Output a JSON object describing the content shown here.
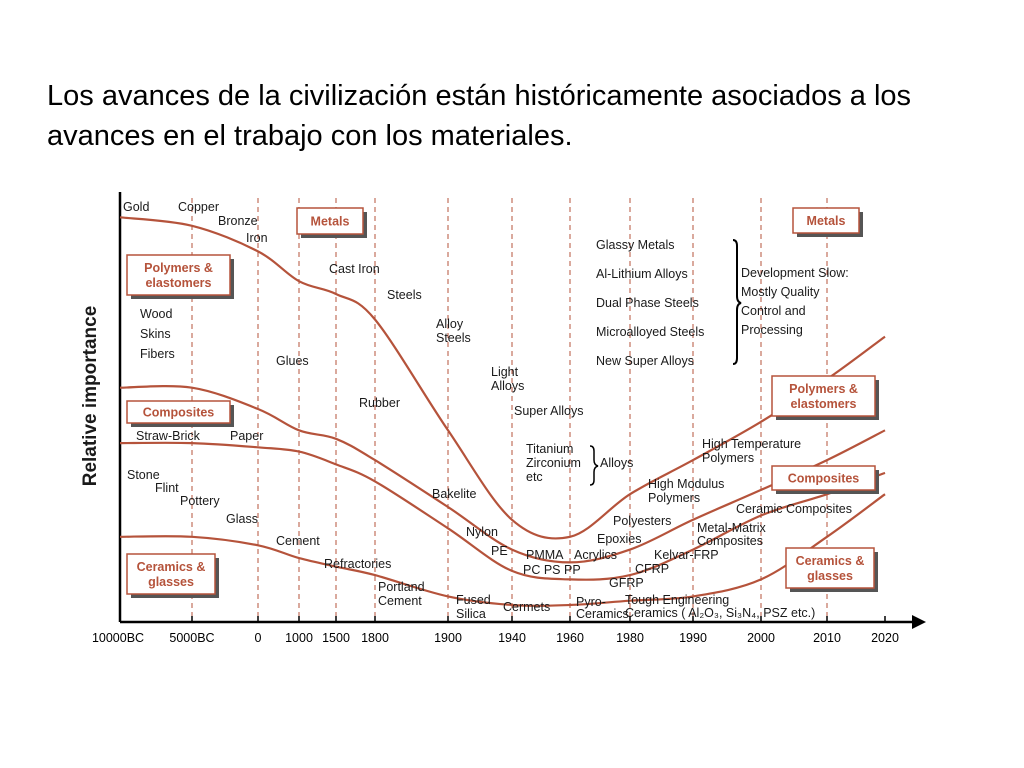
{
  "slide": {
    "title": "Los avances de la civilización están históricamente asociados a los avances en el trabajo con los materiales."
  },
  "colors": {
    "curve": "#b5533b",
    "box_stroke": "#b5533b",
    "box_text": "#b5533b",
    "gridline": "#b5533b",
    "axis": "#000000",
    "text": "#1a1a1a"
  },
  "chart_data": {
    "type": "line",
    "title": "",
    "ylabel": "Relative importance",
    "xlabel": "",
    "x_ticks": [
      "10000BC",
      "5000BC",
      "0",
      "1000",
      "1500",
      "1800",
      "1900",
      "1940",
      "1960",
      "1980",
      "1990",
      "2000",
      "2010",
      "2020"
    ],
    "gridlines_at": [
      "5000BC",
      "0",
      "1000",
      "1500",
      "1800",
      "1900",
      "1940",
      "1960",
      "1980",
      "1990",
      "2000",
      "2010"
    ],
    "ylim": [
      0,
      100
    ],
    "series": [
      {
        "name": "Metals",
        "points": [
          [
            "10000BC",
            95
          ],
          [
            "5000BC",
            93
          ],
          [
            "0",
            87
          ],
          [
            "1000",
            80
          ],
          [
            "1500",
            77
          ],
          [
            "1800",
            71
          ],
          [
            "1900",
            45
          ],
          [
            "1940",
            24
          ],
          [
            "1960",
            20
          ],
          [
            "1980",
            30
          ],
          [
            "1990",
            38
          ],
          [
            "2000",
            47
          ],
          [
            "2010",
            57
          ],
          [
            "2020",
            67
          ]
        ]
      },
      {
        "name": "Polymers & elastomers",
        "points": [
          [
            "10000BC",
            55
          ],
          [
            "5000BC",
            55
          ],
          [
            "0",
            50
          ],
          [
            "1000",
            45
          ],
          [
            "1500",
            43
          ],
          [
            "1800",
            38
          ],
          [
            "1900",
            27
          ],
          [
            "1940",
            17
          ],
          [
            "1960",
            14
          ],
          [
            "1980",
            17
          ],
          [
            "1990",
            24
          ],
          [
            "2000",
            31
          ],
          [
            "2010",
            38
          ],
          [
            "2020",
            45
          ]
        ]
      },
      {
        "name": "Composites",
        "points": [
          [
            "10000BC",
            42
          ],
          [
            "5000BC",
            42
          ],
          [
            "0",
            41
          ],
          [
            "1000",
            40
          ],
          [
            "1500",
            37
          ],
          [
            "1800",
            33
          ],
          [
            "1900",
            22
          ],
          [
            "1940",
            12
          ],
          [
            "1960",
            10
          ],
          [
            "1980",
            11
          ],
          [
            "1990",
            17
          ],
          [
            "2000",
            25
          ],
          [
            "2010",
            30
          ],
          [
            "2020",
            35
          ]
        ]
      },
      {
        "name": "Ceramics & glasses",
        "points": [
          [
            "10000BC",
            20
          ],
          [
            "5000BC",
            20
          ],
          [
            "0",
            18
          ],
          [
            "1000",
            15
          ],
          [
            "1500",
            13
          ],
          [
            "1800",
            11
          ],
          [
            "1900",
            6
          ],
          [
            "1940",
            4
          ],
          [
            "1960",
            4
          ],
          [
            "1980",
            5
          ],
          [
            "1990",
            6
          ],
          [
            "2000",
            10
          ],
          [
            "2010",
            20
          ],
          [
            "2020",
            30
          ]
        ]
      }
    ],
    "category_boxes": [
      {
        "key": "metals_left",
        "text": [
          "Metals"
        ]
      },
      {
        "key": "polymers_left",
        "text": [
          "Polymers &",
          "elastomers"
        ]
      },
      {
        "key": "composites_left",
        "text": [
          "Composites"
        ]
      },
      {
        "key": "ceramics_left",
        "text": [
          "Ceramics &",
          "glasses"
        ]
      },
      {
        "key": "metals_right",
        "text": [
          "Metals"
        ]
      },
      {
        "key": "polymers_right",
        "text": [
          "Polymers &",
          "elastomers"
        ]
      },
      {
        "key": "composites_right",
        "text": [
          "Composites"
        ]
      },
      {
        "key": "ceramics_right",
        "text": [
          "Ceramics &",
          "glasses"
        ]
      }
    ],
    "annotations": [
      {
        "key": "gold",
        "text": [
          "Gold"
        ]
      },
      {
        "key": "copper",
        "text": [
          "Copper"
        ]
      },
      {
        "key": "bronze",
        "text": [
          "Bronze"
        ]
      },
      {
        "key": "iron",
        "text": [
          "Iron"
        ]
      },
      {
        "key": "cast_iron",
        "text": [
          "Cast Iron"
        ]
      },
      {
        "key": "steels",
        "text": [
          "Steels"
        ]
      },
      {
        "key": "alloy_steels",
        "text": [
          "Alloy",
          "Steels"
        ]
      },
      {
        "key": "light_alloys",
        "text": [
          "Light",
          "Alloys"
        ]
      },
      {
        "key": "super_alloys",
        "text": [
          "Super Alloys"
        ]
      },
      {
        "key": "titanium_zirconium",
        "text": [
          "Titanium",
          "Zirconium",
          "etc"
        ]
      },
      {
        "key": "alloys",
        "text": [
          "Alloys"
        ]
      },
      {
        "key": "wood",
        "text": [
          "Wood",
          "Skins",
          "Fibers"
        ]
      },
      {
        "key": "glues",
        "text": [
          "Glues"
        ]
      },
      {
        "key": "rubber",
        "text": [
          "Rubber"
        ]
      },
      {
        "key": "bakelite",
        "text": [
          "Bakelite"
        ]
      },
      {
        "key": "nylon",
        "text": [
          "Nylon"
        ]
      },
      {
        "key": "pe",
        "text": [
          "PE"
        ]
      },
      {
        "key": "pmma",
        "text": [
          "PMMA"
        ]
      },
      {
        "key": "acrylics",
        "text": [
          "Acrylics"
        ]
      },
      {
        "key": "pc_ps_pp",
        "text": [
          "PC  PS  PP"
        ]
      },
      {
        "key": "straw_brick",
        "text": [
          "Straw-Brick"
        ]
      },
      {
        "key": "paper",
        "text": [
          "Paper"
        ]
      },
      {
        "key": "stone",
        "text": [
          "Stone"
        ]
      },
      {
        "key": "flint",
        "text": [
          "Flint"
        ]
      },
      {
        "key": "pottery",
        "text": [
          "Pottery"
        ]
      },
      {
        "key": "glass",
        "text": [
          "Glass"
        ]
      },
      {
        "key": "cement",
        "text": [
          "Cement"
        ]
      },
      {
        "key": "refractories",
        "text": [
          "Refractories"
        ]
      },
      {
        "key": "portland",
        "text": [
          "Portland",
          "Cement"
        ]
      },
      {
        "key": "fused_silica",
        "text": [
          "Fused",
          "Silica"
        ]
      },
      {
        "key": "cermets",
        "text": [
          "Cermets"
        ]
      },
      {
        "key": "pyro_ceramics",
        "text": [
          "Pyro-",
          "Ceramics"
        ]
      },
      {
        "key": "polyesters",
        "text": [
          "Polyesters"
        ]
      },
      {
        "key": "epoxies",
        "text": [
          "Epoxies"
        ]
      },
      {
        "key": "cfrp",
        "text": [
          "CFRP"
        ]
      },
      {
        "key": "gfrp",
        "text": [
          "GFRP"
        ]
      },
      {
        "key": "kelvar_frp",
        "text": [
          "Kelvar-FRP"
        ]
      },
      {
        "key": "metal_matrix",
        "text": [
          "Metal-Matrix",
          "Composites"
        ]
      },
      {
        "key": "high_modulus",
        "text": [
          "High Modulus",
          "Polymers"
        ]
      },
      {
        "key": "high_temp",
        "text": [
          "High Temperature",
          "Polymers"
        ]
      },
      {
        "key": "ceramic_composites",
        "text": [
          "Ceramic Composites"
        ]
      },
      {
        "key": "tough_engineering",
        "text": [
          "Tough Engineering",
          "Ceramics ( Al₂O₃, Si₃N₄, PSZ etc.)"
        ]
      },
      {
        "key": "glassy_metals",
        "text": [
          "Glassy Metals",
          "Al-Lithium Alloys",
          "Dual Phase Steels",
          "Microalloyed Steels",
          "New Super Alloys"
        ]
      },
      {
        "key": "development_slow",
        "text": [
          "Development Slow:",
          "Mostly Quality",
          "Control and",
          "Processing"
        ]
      }
    ]
  }
}
